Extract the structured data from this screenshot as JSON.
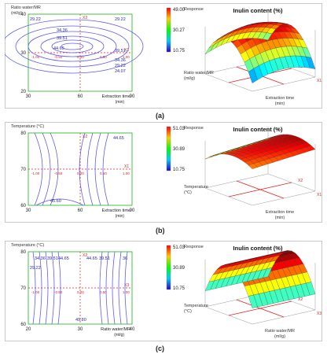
{
  "panels": [
    {
      "label": "(a)",
      "contour": {
        "ylabel_lines": [
          "Ratio water/MR",
          "(ml/g)"
        ],
        "xlabel": "Extraction time",
        "xunit": "(min)",
        "xticks": [
          "30",
          "60",
          "90"
        ],
        "yticks": [
          "20",
          "30",
          "40"
        ],
        "x_range": [
          30,
          90
        ],
        "y_range": [
          20,
          40
        ],
        "marker": "X1",
        "factor_level_labels": [
          "-1.00",
          "-0.50",
          "0.00",
          "0.50",
          "1.00"
        ],
        "contour_labels": [
          "29.22",
          "29.22",
          "34.36",
          "39.51",
          "44.65",
          "39.51",
          "34.36",
          "29.22",
          "24.07"
        ]
      },
      "surface": {
        "title": "Inulin content (%)",
        "legend_title": "Response",
        "legend_values": [
          "49.00",
          "30.27",
          "10.75"
        ],
        "axis_left": "Ratio water/MR",
        "axis_left_unit": "(ml/g)",
        "axis_right": "Extraction time",
        "axis_right_unit": "(min)",
        "marker_x1": "X1",
        "marker_x2": "X2"
      }
    },
    {
      "label": "(b)",
      "contour": {
        "ylabel_lines": [
          "Temperature (°C)"
        ],
        "xlabel": "Extraction time",
        "xunit": "(min)",
        "xticks": [
          "30",
          "60",
          "90"
        ],
        "yticks": [
          "60",
          "70",
          "80"
        ],
        "x_range": [
          30,
          90
        ],
        "y_range": [
          60,
          80
        ],
        "marker": "X1",
        "factor_level_labels": [
          "-1.00",
          "-0.50",
          "0.00",
          "0.50",
          "1.00"
        ],
        "contour_labels": [
          "44.65",
          "45.60"
        ]
      },
      "surface": {
        "title": "Inulin content (%)",
        "legend_title": "Response",
        "legend_values": [
          "51.03",
          "30.89",
          "10.75"
        ],
        "axis_left": "Temperature",
        "axis_left_unit": "(°C)",
        "axis_right": "Extraction time",
        "axis_right_unit": "(min)",
        "marker_x1": "X1",
        "marker_x2": "X2"
      }
    },
    {
      "label": "(c)",
      "contour": {
        "ylabel_lines": [
          "Temperature (°C)"
        ],
        "xlabel": "Ratio water/MR",
        "xunit": "(ml/g)",
        "xticks": [
          "20",
          "30",
          "40"
        ],
        "yticks": [
          "60",
          "70",
          "80"
        ],
        "x_range": [
          20,
          40
        ],
        "y_range": [
          60,
          80
        ],
        "marker": "X3",
        "factor_level_labels": [
          "-1.00",
          "-0.50",
          "0.00",
          "0.50",
          "1.00"
        ],
        "contour_labels": [
          "34.36",
          "39.51",
          "44.65",
          "44.65",
          "39.51",
          "36",
          "29.22",
          "49.80"
        ]
      },
      "surface": {
        "title": "Inulin content (%)",
        "legend_title": "Response",
        "legend_values": [
          "51.03",
          "30.89",
          "10.75"
        ],
        "axis_left": "Temperature",
        "axis_left_unit": "(°C)",
        "axis_right": "Ratio water/MR",
        "axis_right_unit": "(ml/g)",
        "marker_x1": "X3",
        "marker_x2": "X2"
      }
    }
  ],
  "colors": {
    "contour": "#5e5ef0",
    "grid": "#19b219",
    "center": "#e02020",
    "label": "#2a2aa0"
  }
}
